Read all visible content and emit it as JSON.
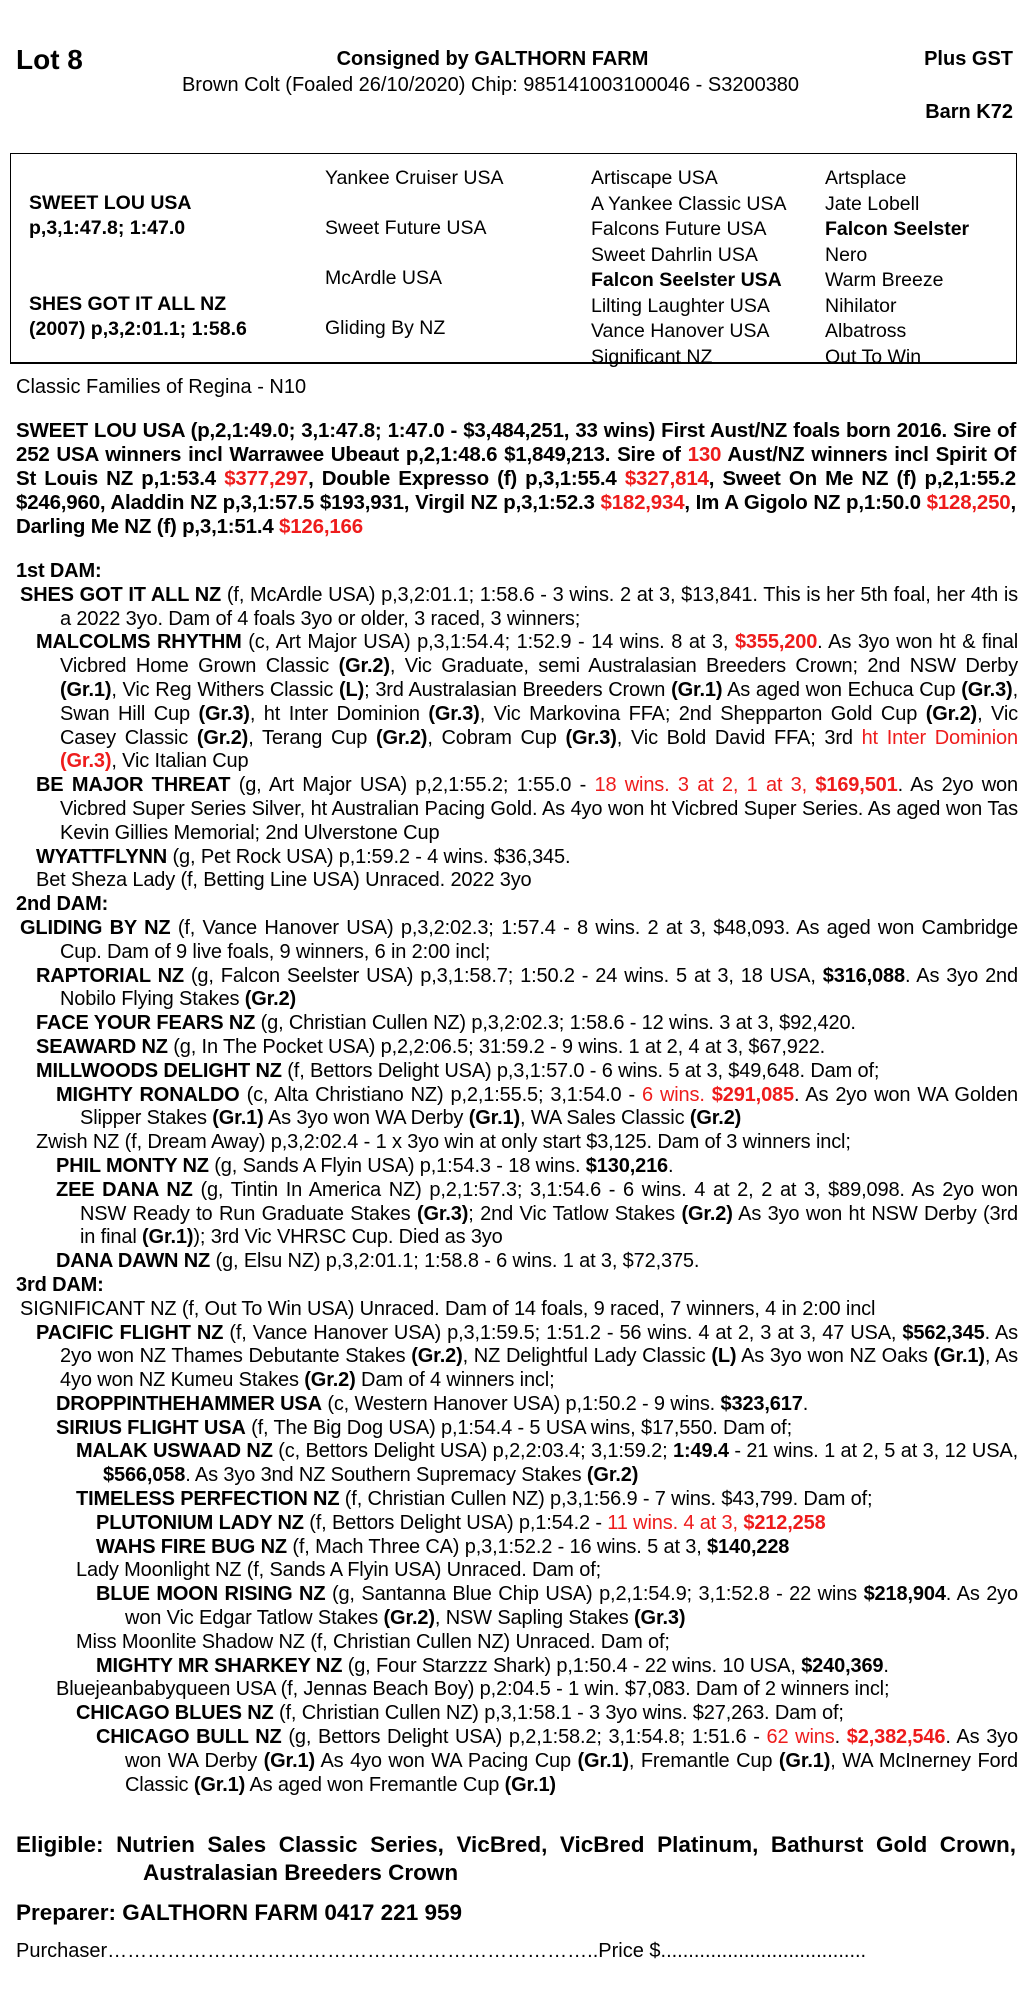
{
  "header": {
    "lot": "Lot 8",
    "consigned": "Consigned by GALTHORN FARM",
    "gst": "Plus  GST",
    "description": "Brown Colt (Foaled 26/10/2020) Chip: 985141003100046 - S3200380",
    "barn": "Barn K72"
  },
  "pedigree_table": {
    "sire": {
      "name": "SWEET LOU USA",
      "record": "p,3,1:47.8; 1:47.0"
    },
    "dam": {
      "name": "SHES GOT IT ALL NZ",
      "record": "(2007) p,3,2:01.1; 1:58.6"
    },
    "gen2": [
      "Yankee Cruiser USA",
      "Sweet Future USA",
      "McArdle USA",
      "Gliding By NZ"
    ],
    "gen3": [
      {
        "t": "Artiscape USA",
        "b": false
      },
      {
        "t": "A Yankee Classic USA",
        "b": false
      },
      {
        "t": "Falcons Future USA",
        "b": false
      },
      {
        "t": "Sweet Dahrlin USA",
        "b": false
      },
      {
        "t": "Falcon Seelster USA",
        "b": true
      },
      {
        "t": "Lilting Laughter USA",
        "b": false
      },
      {
        "t": "Vance Hanover USA",
        "b": false
      },
      {
        "t": "Significant NZ",
        "b": false
      }
    ],
    "gen4": [
      {
        "t": "Artsplace",
        "b": false
      },
      {
        "t": "Jate Lobell",
        "b": false
      },
      {
        "t": "Falcon Seelster",
        "b": true
      },
      {
        "t": "Nero",
        "b": false
      },
      {
        "t": "Warm Breeze",
        "b": false
      },
      {
        "t": "Nihilator",
        "b": false
      },
      {
        "t": "Albatross",
        "b": false
      },
      {
        "t": "Out To Win",
        "b": false
      }
    ]
  },
  "family": "Classic Families of Regina - N10",
  "sire_paragraph": [
    {
      "t": "SWEET LOU USA (p,2,1:49.0; 3,1:47.8; 1:47.0 - $3,484,251, 33 wins) First Aust/NZ foals born 2016. Sire of 252 USA winners incl Warrawee Ubeaut p,2,1:48.6 $1,849,213. Sire of "
    },
    {
      "t": "130",
      "s": "r"
    },
    {
      "t": " Aust/NZ winners incl Spirit Of St Louis NZ p,1:53.4 "
    },
    {
      "t": "$377,297",
      "s": "r"
    },
    {
      "t": ", Double Expresso (f) p,3,1:55.4 "
    },
    {
      "t": "$327,814",
      "s": "r"
    },
    {
      "t": ", Sweet On Me NZ (f) p,2,1:55.2 $246,960, Aladdin NZ p,3,1:57.5 $193,931, Virgil NZ p,3,1:52.3 "
    },
    {
      "t": "$182,934",
      "s": "r"
    },
    {
      "t": ", Im A Gigolo NZ p,1:50.0 "
    },
    {
      "t": "$128,250",
      "s": "r"
    },
    {
      "t": ", Darling Me NZ (f) p,3,1:51.4 "
    },
    {
      "t": "$126,166",
      "s": "r"
    }
  ],
  "entries": [
    {
      "heading": "1st DAM:"
    },
    {
      "level": 0,
      "seg": [
        {
          "t": "SHES GOT IT ALL NZ",
          "s": "b"
        },
        {
          "t": " (f, McArdle USA) p,3,2:01.1; 1:58.6 - 3 wins. 2 at 3, $13,841. This is her 5th foal, her 4th is a 2022 3yo. Dam of 4 foals 3yo or older, 3 raced, 3 winners;"
        }
      ]
    },
    {
      "level": 1,
      "seg": [
        {
          "t": "MALCOLMS RHYTHM",
          "s": "b"
        },
        {
          "t": " (c, Art Major USA) p,3,1:54.4; 1:52.9 - 14 wins. 8 at 3, "
        },
        {
          "t": "$355,200",
          "s": "br"
        },
        {
          "t": ". As 3yo won ht & final Vicbred Home Grown Classic "
        },
        {
          "t": "(Gr.2)",
          "s": "b"
        },
        {
          "t": ", Vic Graduate, semi Australasian Breeders Crown; 2nd NSW Derby "
        },
        {
          "t": "(Gr.1)",
          "s": "b"
        },
        {
          "t": ", Vic Reg Withers Classic "
        },
        {
          "t": "(L)",
          "s": "b"
        },
        {
          "t": "; 3rd Australasian Breeders Crown "
        },
        {
          "t": "(Gr.1)",
          "s": "b"
        },
        {
          "t": " As aged won Echuca Cup "
        },
        {
          "t": "(Gr.3)",
          "s": "b"
        },
        {
          "t": ", Swan Hill Cup "
        },
        {
          "t": "(Gr.3)",
          "s": "b"
        },
        {
          "t": ", ht Inter Dominion "
        },
        {
          "t": "(Gr.3)",
          "s": "b"
        },
        {
          "t": ", Vic Markovina FFA; 2nd Shepparton Gold Cup "
        },
        {
          "t": "(Gr.2)",
          "s": "b"
        },
        {
          "t": ", Vic Casey Classic "
        },
        {
          "t": "(Gr.2)",
          "s": "b"
        },
        {
          "t": ", Terang Cup "
        },
        {
          "t": "(Gr.2)",
          "s": "b"
        },
        {
          "t": ", Cobram Cup "
        },
        {
          "t": "(Gr.3)",
          "s": "b"
        },
        {
          "t": ", Vic Bold David FFA; 3rd "
        },
        {
          "t": "ht Inter Dominion ",
          "s": "r"
        },
        {
          "t": "(Gr.3)",
          "s": "br"
        },
        {
          "t": ", Vic Italian Cup"
        }
      ]
    },
    {
      "level": 1,
      "seg": [
        {
          "t": "BE MAJOR THREAT",
          "s": "b"
        },
        {
          "t": " (g, Art Major USA) p,2,1:55.2; 1:55.0 - "
        },
        {
          "t": "18 wins. 3 at 2, 1 at 3, ",
          "s": "r"
        },
        {
          "t": "$169,501",
          "s": "br"
        },
        {
          "t": ". As 2yo won Vicbred Super Series Silver, ht Australian Pacing Gold. As 4yo won ht Vicbred Super Series. As aged won Tas Kevin Gillies Memorial; 2nd Ulverstone Cup"
        }
      ]
    },
    {
      "level": 1,
      "seg": [
        {
          "t": "WYATTFLYNN",
          "s": "b"
        },
        {
          "t": " (g, Pet Rock USA) p,1:59.2 - 4 wins. $36,345."
        }
      ]
    },
    {
      "level": 1,
      "seg": [
        {
          "t": "Bet Sheza Lady (f, Betting Line USA) Unraced. 2022 3yo"
        }
      ]
    },
    {
      "heading": "2nd DAM:"
    },
    {
      "level": 0,
      "seg": [
        {
          "t": "GLIDING BY NZ",
          "s": "b"
        },
        {
          "t": " (f, Vance Hanover USA) p,3,2:02.3; 1:57.4 - 8 wins. 2 at 3, $48,093. As aged won Cambridge Cup. Dam of 9 live foals, 9 winners, 6 in 2:00 incl;"
        }
      ]
    },
    {
      "level": 1,
      "seg": [
        {
          "t": "RAPTORIAL NZ",
          "s": "b"
        },
        {
          "t": " (g, Falcon Seelster USA) p,3,1:58.7; 1:50.2 - 24 wins. 5 at 3, 18 USA, "
        },
        {
          "t": "$316,088",
          "s": "b"
        },
        {
          "t": ". As 3yo 2nd Nobilo Flying Stakes "
        },
        {
          "t": "(Gr.2)",
          "s": "b"
        }
      ]
    },
    {
      "level": 1,
      "seg": [
        {
          "t": "FACE YOUR FEARS NZ",
          "s": "b"
        },
        {
          "t": " (g, Christian Cullen NZ) p,3,2:02.3; 1:58.6 - 12 wins. 3 at 3, $92,420."
        }
      ]
    },
    {
      "level": 1,
      "seg": [
        {
          "t": "SEAWARD NZ",
          "s": "b"
        },
        {
          "t": " (g, In The Pocket USA) p,2,2:06.5; 31:59.2 - 9 wins. 1 at 2, 4 at 3, $67,922."
        }
      ]
    },
    {
      "level": 1,
      "seg": [
        {
          "t": "MILLWOODS DELIGHT NZ",
          "s": "b"
        },
        {
          "t": " (f, Bettors Delight USA) p,3,1:57.0 - 6 wins. 5 at 3, $49,648. Dam of;"
        }
      ]
    },
    {
      "level": 2,
      "seg": [
        {
          "t": "MIGHTY RONALDO",
          "s": "b"
        },
        {
          "t": " (c, Alta Christiano NZ) p,2,1:55.5; 3,1:54.0 - "
        },
        {
          "t": "6 wins. ",
          "s": "r"
        },
        {
          "t": "$291,085",
          "s": "br"
        },
        {
          "t": ". As 2yo won WA Golden Slipper Stakes "
        },
        {
          "t": "(Gr.1)",
          "s": "b"
        },
        {
          "t": " As 3yo won WA Derby "
        },
        {
          "t": "(Gr.1)",
          "s": "b"
        },
        {
          "t": ", WA Sales Classic "
        },
        {
          "t": "(Gr.2)",
          "s": "b"
        }
      ]
    },
    {
      "level": 1,
      "seg": [
        {
          "t": "Zwish NZ (f, Dream Away) p,3,2:02.4 - 1 x 3yo win at only start $3,125. Dam of 3 winners incl;"
        }
      ]
    },
    {
      "level": 2,
      "seg": [
        {
          "t": "PHIL MONTY NZ",
          "s": "b"
        },
        {
          "t": " (g, Sands A Flyin USA) p,1:54.3 - 18 wins. "
        },
        {
          "t": "$130,216",
          "s": "b"
        },
        {
          "t": "."
        }
      ]
    },
    {
      "level": 2,
      "seg": [
        {
          "t": "ZEE DANA NZ",
          "s": "b"
        },
        {
          "t": " (g, Tintin In America NZ) p,2,1:57.3; 3,1:54.6 - 6 wins. 4 at 2, 2 at 3, $89,098. As 2yo won NSW Ready to Run Graduate Stakes "
        },
        {
          "t": "(Gr.3)",
          "s": "b"
        },
        {
          "t": "; 2nd Vic Tatlow Stakes "
        },
        {
          "t": "(Gr.2)",
          "s": "b"
        },
        {
          "t": " As 3yo won ht NSW Derby (3rd in final "
        },
        {
          "t": "(Gr.1)",
          "s": "b"
        },
        {
          "t": "); 3rd Vic VHRSC Cup. Died as 3yo"
        }
      ]
    },
    {
      "level": 2,
      "seg": [
        {
          "t": "DANA DAWN NZ",
          "s": "b"
        },
        {
          "t": " (g, Elsu NZ) p,3,2:01.1; 1:58.8 - 6 wins. 1 at 3, $72,375."
        }
      ]
    },
    {
      "heading": "3rd DAM:"
    },
    {
      "level": 0,
      "seg": [
        {
          "t": "SIGNIFICANT NZ (f, Out To Win USA) Unraced. Dam of 14 foals, 9 raced, 7 winners, 4 in 2:00 incl"
        }
      ]
    },
    {
      "level": 1,
      "seg": [
        {
          "t": "PACIFIC FLIGHT NZ",
          "s": "b"
        },
        {
          "t": " (f, Vance Hanover USA) p,3,1:59.5; 1:51.2 - 56 wins. 4 at 2, 3 at 3, 47 USA, "
        },
        {
          "t": "$562,345",
          "s": "b"
        },
        {
          "t": ". As 2yo won NZ Thames Debutante Stakes "
        },
        {
          "t": "(Gr.2)",
          "s": "b"
        },
        {
          "t": ", NZ Delightful Lady Classic "
        },
        {
          "t": "(L)",
          "s": "b"
        },
        {
          "t": " As 3yo won NZ Oaks "
        },
        {
          "t": "(Gr.1)",
          "s": "b"
        },
        {
          "t": ", As 4yo won NZ Kumeu Stakes "
        },
        {
          "t": "(Gr.2)",
          "s": "b"
        },
        {
          "t": " Dam of 4 winners incl;"
        }
      ]
    },
    {
      "level": 2,
      "seg": [
        {
          "t": "DROPPINTHEHAMMER USA",
          "s": "b"
        },
        {
          "t": " (c, Western Hanover USA) p,1:50.2 - 9 wins. "
        },
        {
          "t": "$323,617",
          "s": "b"
        },
        {
          "t": "."
        }
      ]
    },
    {
      "level": 2,
      "seg": [
        {
          "t": "SIRIUS FLIGHT USA",
          "s": "b"
        },
        {
          "t": " (f, The Big Dog USA) p,1:54.4 - 5 USA wins, $17,550. Dam of;"
        }
      ]
    },
    {
      "level": 3,
      "seg": [
        {
          "t": "MALAK USWAAD NZ",
          "s": "b"
        },
        {
          "t": " (c, Bettors Delight USA) p,2,2:03.4; 3,1:59.2; "
        },
        {
          "t": "1:49.4",
          "s": "b"
        },
        {
          "t": " - 21 wins. 1 at 2, 5 at 3, 12 USA, "
        },
        {
          "t": "$566,058",
          "s": "b"
        },
        {
          "t": ". As 3yo 3nd NZ Southern Supremacy Stakes "
        },
        {
          "t": "(Gr.2)",
          "s": "b"
        }
      ]
    },
    {
      "level": 3,
      "seg": [
        {
          "t": "TIMELESS PERFECTION NZ",
          "s": "b"
        },
        {
          "t": " (f, Christian Cullen NZ) p,3,1:56.9 - 7 wins. $43,799. Dam of;"
        }
      ]
    },
    {
      "level": 4,
      "seg": [
        {
          "t": "PLUTONIUM LADY NZ",
          "s": "b"
        },
        {
          "t": " (f, Bettors Delight USA) p,1:54.2 - "
        },
        {
          "t": "11 wins. 4 at 3, ",
          "s": "r"
        },
        {
          "t": "$212,258",
          "s": "br"
        }
      ]
    },
    {
      "level": 4,
      "seg": [
        {
          "t": "WAHS FIRE BUG NZ",
          "s": "b"
        },
        {
          "t": " (f, Mach Three CA) p,3,1:52.2 - 16 wins. 5 at 3, "
        },
        {
          "t": "$140,228",
          "s": "b"
        }
      ]
    },
    {
      "level": 3,
      "seg": [
        {
          "t": "Lady Moonlight NZ (f, Sands A Flyin USA) Unraced. Dam of;"
        }
      ]
    },
    {
      "level": 4,
      "seg": [
        {
          "t": "BLUE MOON RISING NZ",
          "s": "b"
        },
        {
          "t": " (g, Santanna Blue Chip USA) p,2,1:54.9; 3,1:52.8 - 22 wins "
        },
        {
          "t": "$218,904",
          "s": "b"
        },
        {
          "t": ". As 2yo won Vic Edgar Tatlow Stakes "
        },
        {
          "t": "(Gr.2)",
          "s": "b"
        },
        {
          "t": ", NSW Sapling Stakes "
        },
        {
          "t": "(Gr.3)",
          "s": "b"
        }
      ]
    },
    {
      "level": 3,
      "seg": [
        {
          "t": "Miss Moonlite Shadow NZ (f, Christian Cullen NZ) Unraced. Dam of;"
        }
      ]
    },
    {
      "level": 4,
      "seg": [
        {
          "t": "MIGHTY MR SHARKEY NZ",
          "s": "b"
        },
        {
          "t": " (g, Four Starzzz Shark) p,1:50.4 - 22 wins. 10 USA, "
        },
        {
          "t": "$240,369",
          "s": "b"
        },
        {
          "t": "."
        }
      ]
    },
    {
      "level": 2,
      "seg": [
        {
          "t": "Bluejeanbabyqueen USA (f, Jennas Beach Boy) p,2:04.5 - 1 win. $7,083. Dam of 2 winners incl;"
        }
      ]
    },
    {
      "level": 3,
      "seg": [
        {
          "t": "CHICAGO BLUES NZ",
          "s": "b"
        },
        {
          "t": " (f, Christian Cullen NZ) p,3,1:58.1 - 3 3yo wins. $27,263. Dam of;"
        }
      ]
    },
    {
      "level": 4,
      "seg": [
        {
          "t": "CHICAGO BULL NZ",
          "s": "b"
        },
        {
          "t": " (g, Bettors Delight USA) p,2,1:58.2; 3,1:54.8; 1:51.6 - "
        },
        {
          "t": "62 wins",
          "s": "r"
        },
        {
          "t": ". "
        },
        {
          "t": "$2,382,546",
          "s": "br"
        },
        {
          "t": ". As 3yo won WA Derby "
        },
        {
          "t": "(Gr.1)",
          "s": "b"
        },
        {
          "t": " As 4yo won WA Pacing Cup "
        },
        {
          "t": "(Gr.1)",
          "s": "b"
        },
        {
          "t": ", Fremantle Cup "
        },
        {
          "t": "(Gr.1)",
          "s": "b"
        },
        {
          "t": ", WA McInerney Ford Classic "
        },
        {
          "t": "(Gr.1)",
          "s": "b"
        },
        {
          "t": " As aged won Fremantle Cup "
        },
        {
          "t": "(Gr.1)",
          "s": "b"
        }
      ]
    }
  ],
  "eligible": "Eligible: Nutrien Sales Classic Series, VicBred, VicBred Platinum, Bathurst Gold Crown, Australasian Breeders Crown",
  "preparer": "Preparer: GALTHORN FARM 0417 221 959",
  "purchaser": "Purchaser………………………………………………………………..Price $.....................................",
  "colors": {
    "highlight": "#ee1c1c",
    "text": "#000000"
  }
}
